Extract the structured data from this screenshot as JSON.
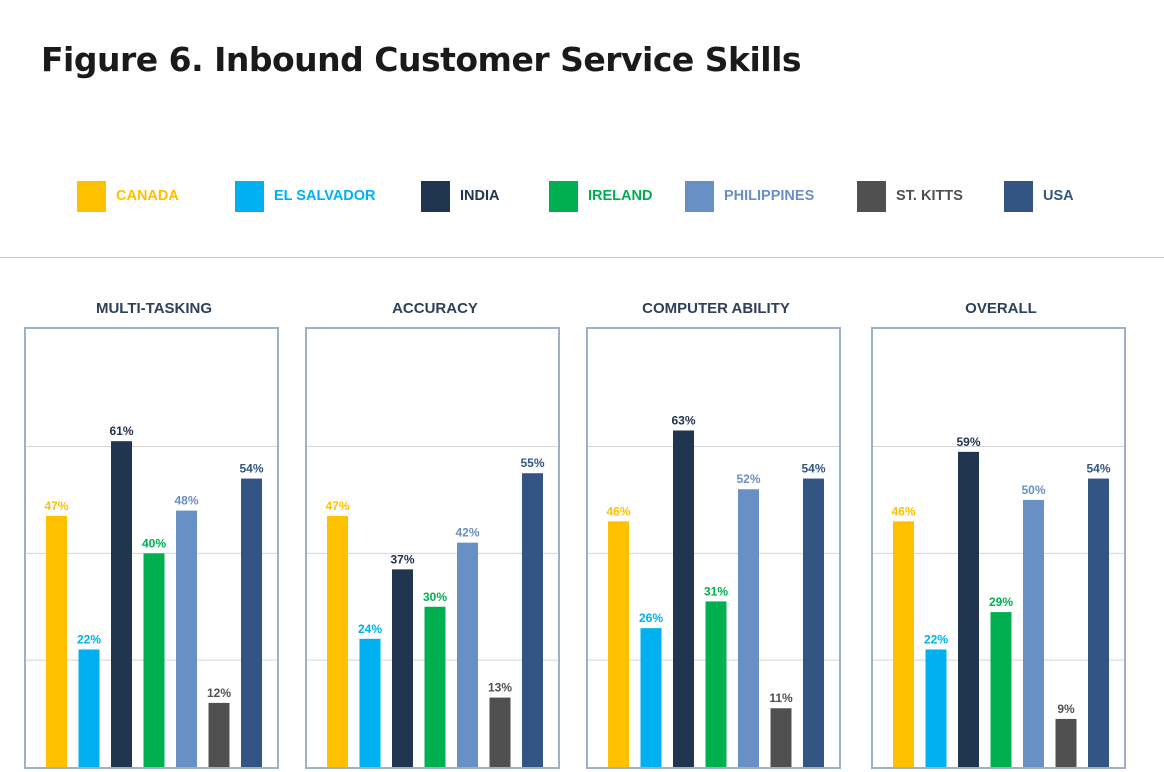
{
  "title": "Figure 6. Inbound Customer Service Skills",
  "legend": [
    {
      "label": "CANADA",
      "color": "#ffc000"
    },
    {
      "label": "EL SALVADOR",
      "color": "#00b0f0"
    },
    {
      "label": "INDIA",
      "color": "#203550"
    },
    {
      "label": "IRELAND",
      "color": "#00b050"
    },
    {
      "label": "PHILIPPINES",
      "color": "#6990c4"
    },
    {
      "label": "ST. KITTS",
      "color": "#505050"
    },
    {
      "label": "USA",
      "color": "#335583"
    }
  ],
  "chart_data": [
    {
      "type": "bar",
      "title": "MULTI-TASKING",
      "categories": [
        "CANADA",
        "EL SALVADOR",
        "INDIA",
        "IRELAND",
        "PHILIPPINES",
        "ST. KITTS",
        "USA"
      ],
      "values": [
        47,
        22,
        61,
        40,
        48,
        12,
        54
      ],
      "labels": [
        "47%",
        "22%",
        "61%",
        "40%",
        "48%",
        "12%",
        "54%"
      ],
      "ylim": [
        0,
        82
      ],
      "grid": true,
      "gridlines": [
        20,
        40,
        60
      ]
    },
    {
      "type": "bar",
      "title": "ACCURACY",
      "categories": [
        "CANADA",
        "EL SALVADOR",
        "INDIA",
        "IRELAND",
        "PHILIPPINES",
        "ST. KITTS",
        "USA"
      ],
      "values": [
        47,
        24,
        37,
        30,
        42,
        13,
        55
      ],
      "labels": [
        "47%",
        "24%",
        "37%",
        "30%",
        "42%",
        "13%",
        "55%"
      ],
      "ylim": [
        0,
        82
      ],
      "grid": true,
      "gridlines": [
        20,
        40,
        60
      ]
    },
    {
      "type": "bar",
      "title": "COMPUTER ABILITY",
      "categories": [
        "CANADA",
        "EL SALVADOR",
        "INDIA",
        "IRELAND",
        "PHILIPPINES",
        "ST. KITTS",
        "USA"
      ],
      "values": [
        46,
        26,
        63,
        31,
        52,
        11,
        54
      ],
      "labels": [
        "46%",
        "26%",
        "63%",
        "31%",
        "52%",
        "11%",
        "54%"
      ],
      "ylim": [
        0,
        82
      ],
      "grid": true,
      "gridlines": [
        20,
        40,
        60
      ]
    },
    {
      "type": "bar",
      "title": "OVERALL",
      "categories": [
        "CANADA",
        "EL SALVADOR",
        "INDIA",
        "IRELAND",
        "PHILIPPINES",
        "ST. KITTS",
        "USA"
      ],
      "values": [
        46,
        22,
        59,
        29,
        50,
        9,
        54
      ],
      "labels": [
        "46%",
        "22%",
        "59%",
        "29%",
        "50%",
        "9%",
        "54%"
      ],
      "ylim": [
        0,
        82
      ],
      "grid": true,
      "gridlines": [
        20,
        40,
        60
      ]
    }
  ]
}
